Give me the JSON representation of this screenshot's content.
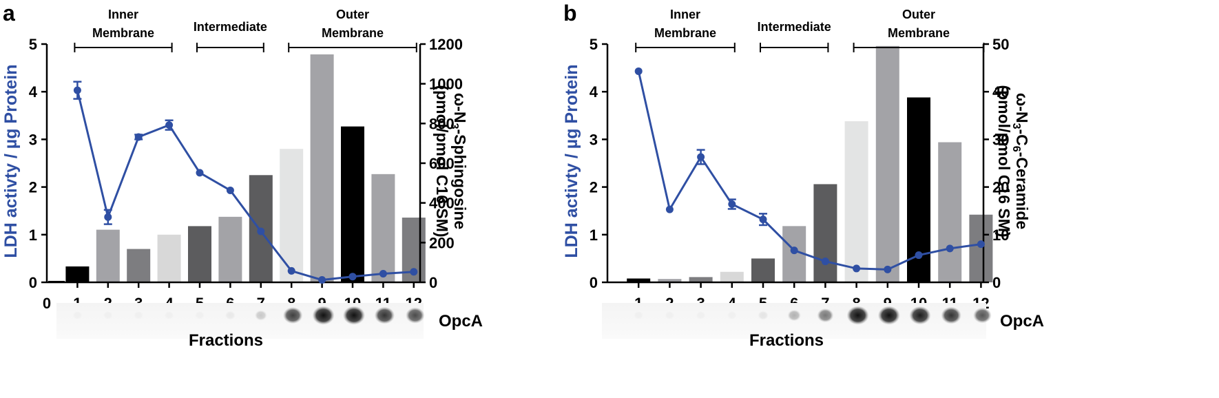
{
  "panels": {
    "a": {
      "letter": "a",
      "right_label_pre": "ω-N",
      "right_label_sub": "3",
      "right_label_post": "-Sphingosine",
      "right_label_line2": "(pmol/pmol C16 SM)",
      "left_label": "LDH activty /  µg Protein",
      "fractions_label": "Fractions",
      "opca_label": "OpcA"
    },
    "b": {
      "letter": "b",
      "right_label_pre": "ω-N",
      "right_label_sub": "3",
      "right_label_mid": "-C",
      "right_label_sub2": "6",
      "right_label_post": "-Ceramide",
      "right_label_line2": "(pmol/pmol C16 SM)",
      "left_label": "LDH activty /  µg Protein",
      "fractions_label": "Fractions",
      "opca_label": "OpcA"
    }
  },
  "chart_data": [
    {
      "type": "bar",
      "panel": "a",
      "categories": [
        "0",
        "1",
        "2",
        "3",
        "4",
        "5",
        "6",
        "7",
        "8",
        "9",
        "10",
        "11",
        "12"
      ],
      "bar_series": {
        "name": "ω-N3-Sphingosine (pmol/pmol C16 SM)",
        "fractions": [
          1,
          2,
          3,
          4,
          5,
          6,
          7,
          8,
          9,
          10,
          11,
          12
        ],
        "values": [
          80,
          265,
          168,
          240,
          283,
          330,
          540,
          672,
          1148,
          785,
          545,
          326
        ],
        "colors": [
          "#000000",
          "#a3a3a7",
          "#7d7d80",
          "#d8d8d8",
          "#5c5c5e",
          "#a3a3a7",
          "#5c5c5e",
          "#e3e4e4",
          "#a3a3a7",
          "#000000",
          "#a3a3a7",
          "#7d7d80"
        ]
      },
      "line_series": {
        "name": "LDH activity / µg Protein",
        "fractions": [
          1,
          2,
          3,
          4,
          5,
          6,
          7,
          8,
          9,
          10,
          11,
          12
        ],
        "values": [
          4.03,
          1.37,
          3.05,
          3.3,
          2.3,
          1.93,
          1.07,
          0.24,
          0.05,
          0.12,
          0.18,
          0.22
        ],
        "errors": [
          0.18,
          0.15,
          0.05,
          0.1,
          0,
          0,
          0,
          0,
          0,
          0,
          0,
          0
        ],
        "color": "#2f4fa3"
      },
      "extra_bar_fraction_0": 0.03,
      "y_left": {
        "lim": [
          0,
          5
        ],
        "ticks": [
          "0",
          "1",
          "2",
          "3",
          "4",
          "5"
        ]
      },
      "y_right": {
        "lim": [
          0,
          1200
        ],
        "ticks": [
          "0",
          "200",
          "400",
          "600",
          "800",
          "1000",
          "1200"
        ]
      },
      "x_ticks": [
        "0",
        "1",
        "2",
        "3",
        "4",
        "5",
        "6",
        "7",
        "8",
        "9",
        "10",
        "11",
        "12"
      ],
      "regions": [
        {
          "line1": "Inner",
          "line2": "Membrane",
          "from": 1,
          "to": 4
        },
        {
          "line1": "",
          "line2": "Intermediate",
          "from": 5,
          "to": 7
        },
        {
          "line1": "Outer",
          "line2": "Membrane",
          "from": 8,
          "to": 12
        }
      ],
      "blot_intensity": [
        0.01,
        0.01,
        0.01,
        0.01,
        0.02,
        0.06,
        0.2,
        0.8,
        1.0,
        1.0,
        0.85,
        0.75
      ]
    },
    {
      "type": "bar",
      "panel": "b",
      "categories": [
        "1",
        "2",
        "3",
        "4",
        "5",
        "6",
        "7",
        "8",
        "9",
        "10",
        "11",
        "12"
      ],
      "bar_series": {
        "name": "ω-N3-C6-Ceramide (pmol/pmol C16 SM)",
        "fractions": [
          1,
          2,
          3,
          4,
          5,
          6,
          7,
          8,
          9,
          10,
          11,
          12
        ],
        "values": [
          0.8,
          0.7,
          1.1,
          2.2,
          5.0,
          11.8,
          20.6,
          33.8,
          49.6,
          38.8,
          29.4,
          14.2
        ],
        "colors": [
          "#000000",
          "#a3a3a7",
          "#7d7d80",
          "#d8d8d8",
          "#5c5c5e",
          "#a3a3a7",
          "#5c5c5e",
          "#e3e4e4",
          "#a3a3a7",
          "#000000",
          "#a3a3a7",
          "#7d7d80"
        ]
      },
      "line_series": {
        "name": "LDH activity / µg Protein",
        "fractions": [
          1,
          2,
          3,
          4,
          5,
          6,
          7,
          8,
          9,
          10,
          11,
          12
        ],
        "values": [
          4.43,
          1.53,
          2.63,
          1.64,
          1.32,
          0.67,
          0.44,
          0.29,
          0.27,
          0.57,
          0.71,
          0.8
        ],
        "errors": [
          0,
          0,
          0.15,
          0.1,
          0.12,
          0,
          0,
          0,
          0,
          0,
          0,
          0
        ],
        "color": "#2f4fa3"
      },
      "y_left": {
        "lim": [
          0,
          5
        ],
        "ticks": [
          "0",
          "1",
          "2",
          "3",
          "4",
          "5"
        ]
      },
      "y_right": {
        "lim": [
          0,
          50
        ],
        "ticks": [
          "0",
          "10",
          "20",
          "30",
          "40",
          "50"
        ]
      },
      "x_ticks": [
        "1",
        "2",
        "3",
        "4",
        "5",
        "6",
        "7",
        "8",
        "9",
        "10",
        "11",
        "12"
      ],
      "regions": [
        {
          "line1": "Inner",
          "line2": "Membrane",
          "from": 1,
          "to": 4
        },
        {
          "line1": "",
          "line2": "Intermediate",
          "from": 5,
          "to": 7
        },
        {
          "line1": "Outer",
          "line2": "Membrane",
          "from": 8,
          "to": 12
        }
      ],
      "blot_intensity": [
        0.01,
        0.01,
        0.01,
        0.02,
        0.08,
        0.3,
        0.55,
        1.0,
        1.0,
        0.95,
        0.85,
        0.7
      ]
    }
  ]
}
